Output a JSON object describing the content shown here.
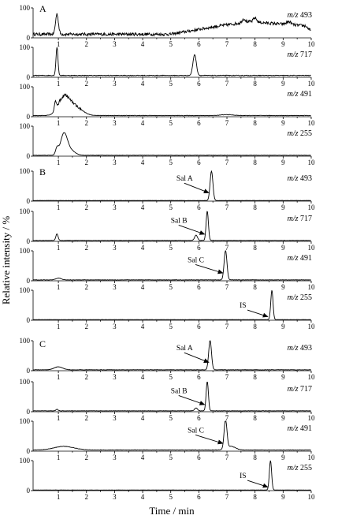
{
  "chart_data": {
    "type": "line",
    "xlabel": "Time / min",
    "ylabel": "Relative intensity / %",
    "xlim": [
      0.1,
      10
    ],
    "x_ticks": [
      "1",
      "2",
      "3",
      "4",
      "5",
      "6",
      "7",
      "8",
      "9",
      "10"
    ],
    "ylim": [
      0,
      100
    ],
    "y_ticks": [
      "0",
      "100"
    ],
    "line_color": "#000000",
    "groups": [
      {
        "label": "A",
        "panels": [
          {
            "mz_prefix": "m/z",
            "mz_value": "493",
            "annotation": null,
            "series": {
              "baseline": 12,
              "noise": [
                {
                  "from": 0.1,
                  "to": 10,
                  "amp": 5
                }
              ],
              "ramps": [
                {
                  "from": 5.0,
                  "to": 6.6,
                  "start": 0,
                  "end": 26
                },
                {
                  "from": 6.6,
                  "to": 7.8,
                  "start": 26,
                  "end": 42
                },
                {
                  "from": 7.8,
                  "to": 9.8,
                  "start": 42,
                  "end": 28
                },
                {
                  "from": 9.8,
                  "to": 10,
                  "start": 28,
                  "end": 10
                }
              ],
              "peaks": [
                {
                  "x": 0.95,
                  "h": 68,
                  "w": 0.05
                },
                {
                  "x": 7.6,
                  "h": 12,
                  "w": 0.06
                },
                {
                  "x": 8.0,
                  "h": 14,
                  "w": 0.06
                },
                {
                  "x": 9.2,
                  "h": 10,
                  "w": 0.08
                }
              ]
            }
          },
          {
            "mz_prefix": "m/z",
            "mz_value": "717",
            "annotation": null,
            "series": {
              "baseline": 6,
              "noise": [
                {
                  "from": 0.1,
                  "to": 10,
                  "amp": 1.2
                }
              ],
              "ramps": [],
              "peaks": [
                {
                  "x": 0.95,
                  "h": 95,
                  "w": 0.035
                },
                {
                  "x": 5.85,
                  "h": 70,
                  "w": 0.06
                }
              ]
            }
          },
          {
            "mz_prefix": "m/z",
            "mz_value": "491",
            "annotation": null,
            "series": {
              "baseline": 4,
              "noise": [
                {
                  "from": 0.1,
                  "to": 10,
                  "amp": 0.8
                },
                {
                  "from": 0.85,
                  "to": 1.8,
                  "amp": 5
                }
              ],
              "ramps": [],
              "peaks": [
                {
                  "x": 0.9,
                  "h": 28,
                  "w": 0.04
                },
                {
                  "x": 1.2,
                  "h": 60,
                  "w": 0.2
                },
                {
                  "x": 1.6,
                  "h": 28,
                  "w": 0.25
                },
                {
                  "x": 7.0,
                  "h": 3,
                  "w": 0.2
                }
              ]
            }
          },
          {
            "mz_prefix": "m/z",
            "mz_value": "255",
            "annotation": null,
            "series": {
              "baseline": 3,
              "noise": [
                {
                  "from": 0.1,
                  "to": 10,
                  "amp": 0.5
                }
              ],
              "ramps": [],
              "peaks": [
                {
                  "x": 0.95,
                  "h": 22,
                  "w": 0.05
                },
                {
                  "x": 1.2,
                  "h": 72,
                  "w": 0.12
                },
                {
                  "x": 1.45,
                  "h": 15,
                  "w": 0.15
                }
              ]
            }
          }
        ]
      },
      {
        "label": "B",
        "panels": [
          {
            "mz_prefix": "m/z",
            "mz_value": "493",
            "annotation": {
              "text": "Sal A",
              "text_x": 5.2,
              "text_y": 68,
              "arrow_x": 6.35,
              "arrow_y": 28
            },
            "series": {
              "baseline": 2,
              "noise": [
                {
                  "from": 0.1,
                  "to": 10,
                  "amp": 0.4
                }
              ],
              "ramps": [],
              "peaks": [
                {
                  "x": 6.45,
                  "h": 98,
                  "w": 0.05
                }
              ]
            }
          },
          {
            "mz_prefix": "m/z",
            "mz_value": "717",
            "annotation": {
              "text": "Sal B",
              "text_x": 5.0,
              "text_y": 62,
              "arrow_x": 6.2,
              "arrow_y": 24
            },
            "series": {
              "baseline": 3,
              "noise": [
                {
                  "from": 0.1,
                  "to": 10,
                  "amp": 0.6
                }
              ],
              "ramps": [],
              "peaks": [
                {
                  "x": 0.95,
                  "h": 22,
                  "w": 0.04
                },
                {
                  "x": 5.9,
                  "h": 18,
                  "w": 0.05
                },
                {
                  "x": 6.3,
                  "h": 98,
                  "w": 0.04
                }
              ]
            }
          },
          {
            "mz_prefix": "m/z",
            "mz_value": "491",
            "annotation": {
              "text": "Sal C",
              "text_x": 5.6,
              "text_y": 62,
              "arrow_x": 6.85,
              "arrow_y": 26
            },
            "series": {
              "baseline": 3,
              "noise": [
                {
                  "from": 0.1,
                  "to": 10,
                  "amp": 0.6
                }
              ],
              "ramps": [],
              "peaks": [
                {
                  "x": 1.0,
                  "h": 6,
                  "w": 0.1
                },
                {
                  "x": 6.95,
                  "h": 98,
                  "w": 0.05
                }
              ]
            }
          },
          {
            "mz_prefix": "m/z",
            "mz_value": "255",
            "annotation": {
              "text": "IS",
              "text_x": 7.45,
              "text_y": 42,
              "arrow_x": 8.45,
              "arrow_y": 12
            },
            "series": {
              "baseline": 2,
              "noise": [
                {
                  "from": 0.1,
                  "to": 10,
                  "amp": 0.3
                }
              ],
              "ramps": [],
              "peaks": [
                {
                  "x": 8.6,
                  "h": 98,
                  "w": 0.04
                }
              ]
            }
          }
        ]
      },
      {
        "label": "C",
        "panels": [
          {
            "mz_prefix": "m/z",
            "mz_value": "493",
            "annotation": {
              "text": "Sal A",
              "text_x": 5.2,
              "text_y": 68,
              "arrow_x": 6.35,
              "arrow_y": 28
            },
            "series": {
              "baseline": 3,
              "noise": [
                {
                  "from": 0.1,
                  "to": 10,
                  "amp": 0.6
                }
              ],
              "ramps": [],
              "peaks": [
                {
                  "x": 1.0,
                  "h": 10,
                  "w": 0.15
                },
                {
                  "x": 6.4,
                  "h": 98,
                  "w": 0.05
                }
              ]
            }
          },
          {
            "mz_prefix": "m/z",
            "mz_value": "717",
            "annotation": {
              "text": "Sal B",
              "text_x": 5.0,
              "text_y": 62,
              "arrow_x": 6.2,
              "arrow_y": 24
            },
            "series": {
              "baseline": 3,
              "noise": [
                {
                  "from": 0.1,
                  "to": 10,
                  "amp": 0.5
                }
              ],
              "ramps": [],
              "peaks": [
                {
                  "x": 0.95,
                  "h": 5,
                  "w": 0.04
                },
                {
                  "x": 5.9,
                  "h": 10,
                  "w": 0.05
                },
                {
                  "x": 6.3,
                  "h": 98,
                  "w": 0.04
                }
              ]
            }
          },
          {
            "mz_prefix": "m/z",
            "mz_value": "491",
            "annotation": {
              "text": "Sal C",
              "text_x": 5.6,
              "text_y": 62,
              "arrow_x": 6.85,
              "arrow_y": 26
            },
            "series": {
              "baseline": 4,
              "noise": [
                {
                  "from": 0.1,
                  "to": 10,
                  "amp": 0.7
                }
              ],
              "ramps": [],
              "peaks": [
                {
                  "x": 1.2,
                  "h": 12,
                  "w": 0.35
                },
                {
                  "x": 6.95,
                  "h": 98,
                  "w": 0.05
                },
                {
                  "x": 7.15,
                  "h": 12,
                  "w": 0.15
                }
              ]
            }
          },
          {
            "mz_prefix": "m/z",
            "mz_value": "255",
            "annotation": {
              "text": "IS",
              "text_x": 7.45,
              "text_y": 42,
              "arrow_x": 8.45,
              "arrow_y": 12
            },
            "series": {
              "baseline": 2,
              "noise": [
                {
                  "from": 0.1,
                  "to": 10,
                  "amp": 0.3
                }
              ],
              "ramps": [],
              "peaks": [
                {
                  "x": 8.55,
                  "h": 98,
                  "w": 0.04
                }
              ]
            }
          }
        ]
      }
    ]
  }
}
